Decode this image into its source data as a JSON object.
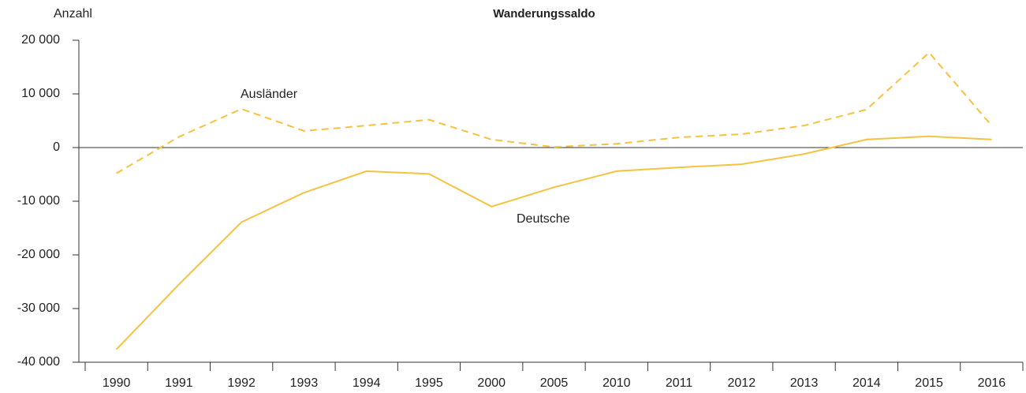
{
  "chart_data": {
    "type": "line",
    "title": "Wanderungssaldo",
    "y_label": "Anzahl",
    "categories": [
      "1990",
      "1991",
      "1992",
      "1993",
      "1994",
      "1995",
      "2000",
      "2005",
      "2010",
      "2011",
      "2012",
      "2013",
      "2014",
      "2015",
      "2016"
    ],
    "series": [
      {
        "name": "Ausländer",
        "color": "#f5c242",
        "style": "dashed",
        "values": [
          -4800,
          2000,
          7200,
          3100,
          4100,
          5200,
          1500,
          100,
          700,
          1900,
          2500,
          4100,
          7100,
          17700,
          4100
        ]
      },
      {
        "name": "Deutsche",
        "color": "#f5c242",
        "style": "solid",
        "values": [
          -37600,
          -25500,
          -13900,
          -8400,
          -4400,
          -4900,
          -11000,
          -7400,
          -4400,
          -3700,
          -3100,
          -1200,
          1500,
          2100,
          1500
        ]
      }
    ],
    "ylim": [
      -40000,
      20000
    ],
    "yticks": [
      {
        "value": 20000,
        "label": "20 000"
      },
      {
        "value": 10000,
        "label": "10 000"
      },
      0,
      {
        "value": -10000,
        "label": "-10 000"
      },
      {
        "value": -20000,
        "label": "-20 000"
      },
      {
        "value": -30000,
        "label": "-30 000"
      },
      {
        "value": -40000,
        "label": "-40 000"
      }
    ]
  }
}
